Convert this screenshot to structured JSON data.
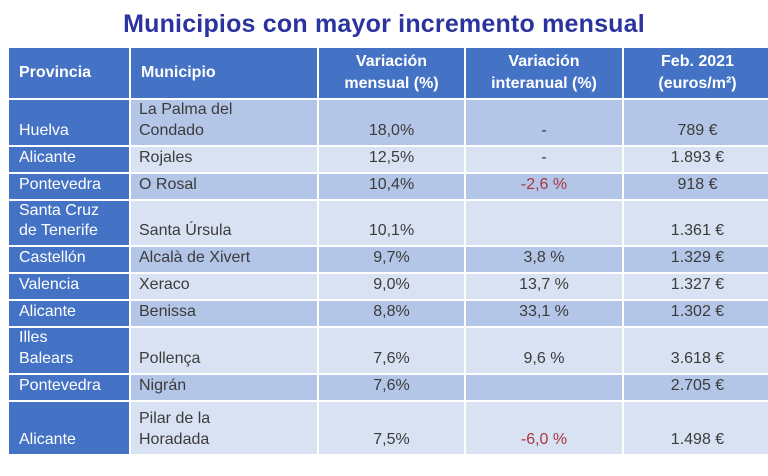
{
  "title": "Municipios con mayor incremento mensual",
  "colors": {
    "title": "#2B339E",
    "header_bg": "#4472C4",
    "band_dark": "#B4C6E7",
    "band_light": "#D9E2F3",
    "negative": "#A93642",
    "body_text": "#3B3B3B"
  },
  "table": {
    "headers": [
      "Provincia",
      "Municipio",
      "Variación\nmensual (%)",
      "Variación\ninteranual (%)",
      "Feb. 2021\n(euros/m²)"
    ],
    "rows": [
      {
        "provincia": "Huelva",
        "municipio": "La Palma del\nCondado",
        "mensual": "18,0%",
        "interanual": "-",
        "precio": "789 €"
      },
      {
        "provincia": "Alicante",
        "municipio": "Rojales",
        "mensual": "12,5%",
        "interanual": "-",
        "precio": "1.893 €"
      },
      {
        "provincia": "Pontevedra",
        "municipio": "O Rosal",
        "mensual": "10,4%",
        "interanual": "-2,6 %",
        "precio": "918 €"
      },
      {
        "provincia": "Santa Cruz\nde Tenerife",
        "municipio": "Santa Úrsula",
        "mensual": "10,1%",
        "interanual": "",
        "precio": "1.361 €"
      },
      {
        "provincia": "Castellón",
        "municipio": "Alcalà de Xivert",
        "mensual": "9,7%",
        "interanual": "3,8 %",
        "precio": "1.329 €"
      },
      {
        "provincia": "Valencia",
        "municipio": "Xeraco",
        "mensual": "9,0%",
        "interanual": "13,7 %",
        "precio": "1.327 €"
      },
      {
        "provincia": "Alicante",
        "municipio": "Benissa",
        "mensual": "8,8%",
        "interanual": "33,1 %",
        "precio": "1.302 €"
      },
      {
        "provincia": "Illes\nBalears",
        "municipio": "Pollença",
        "mensual": "7,6%",
        "interanual": "9,6 %",
        "precio": "3.618 €"
      },
      {
        "provincia": "Pontevedra",
        "municipio": "Nigrán",
        "mensual": "7,6%",
        "interanual": "",
        "precio": "2.705 €"
      },
      {
        "provincia": "Alicante",
        "municipio": "Pilar de la\nHoradada",
        "mensual": "7,5%",
        "interanual": "-6,0 %",
        "precio": "1.498 €"
      }
    ]
  },
  "chart_data": {
    "type": "table",
    "title": "Municipios con mayor incremento mensual",
    "columns": [
      "Provincia",
      "Municipio",
      "Variación mensual (%)",
      "Variación interanual (%)",
      "Feb. 2021 (euros/m²)"
    ],
    "rows": [
      [
        "Huelva",
        "La Palma del Condado",
        "18,0%",
        "-",
        "789 €"
      ],
      [
        "Alicante",
        "Rojales",
        "12,5%",
        "-",
        "1.893 €"
      ],
      [
        "Pontevedra",
        "O Rosal",
        "10,4%",
        "-2,6 %",
        "918 €"
      ],
      [
        "Santa Cruz de Tenerife",
        "Santa Úrsula",
        "10,1%",
        "",
        "1.361 €"
      ],
      [
        "Castellón",
        "Alcalà de Xivert",
        "9,7%",
        "3,8 %",
        "1.329 €"
      ],
      [
        "Valencia",
        "Xeraco",
        "9,0%",
        "13,7 %",
        "1.327 €"
      ],
      [
        "Alicante",
        "Benissa",
        "8,8%",
        "33,1 %",
        "1.302 €"
      ],
      [
        "Illes Balears",
        "Pollença",
        "7,6%",
        "9,6 %",
        "3.618 €"
      ],
      [
        "Pontevedra",
        "Nigrán",
        "7,6%",
        "",
        "2.705 €"
      ],
      [
        "Alicante",
        "Pilar de la Horadada",
        "7,5%",
        "-6,0 %",
        "1.498 €"
      ]
    ],
    "notes": "Negative interanual values rendered in red"
  }
}
